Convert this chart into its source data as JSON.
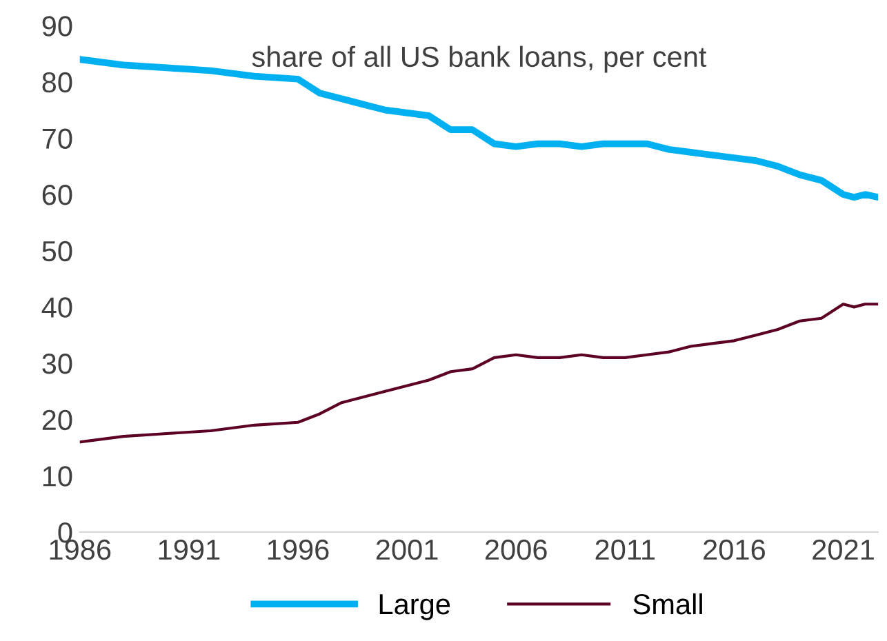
{
  "chart_data": {
    "type": "line",
    "title": "share of all US bank loans, per cent",
    "x": [
      1986,
      1988,
      1990,
      1992,
      1994,
      1996,
      1997,
      1998,
      2000,
      2002,
      2003,
      2004,
      2005,
      2006,
      2007,
      2008,
      2009,
      2010,
      2011,
      2012,
      2013,
      2014,
      2015,
      2016,
      2017,
      2018,
      2019,
      2020,
      2021,
      2021.5,
      2022,
      2022.6
    ],
    "series": [
      {
        "name": "Large",
        "color": "#00b0f0",
        "values": [
          84,
          83,
          82.5,
          82,
          81,
          80.5,
          78,
          77,
          75,
          74,
          71.5,
          71.5,
          69,
          68.5,
          69,
          69,
          68.5,
          69,
          69,
          69,
          68,
          67.5,
          67,
          66.5,
          66,
          65,
          63.5,
          62.5,
          60,
          59.5,
          60,
          59.5
        ]
      },
      {
        "name": "Small",
        "color": "#5c0024",
        "values": [
          16,
          17,
          17.5,
          18,
          19,
          19.5,
          21,
          23,
          25,
          27,
          28.5,
          29,
          31,
          31.5,
          31,
          31,
          31.5,
          31,
          31,
          31.5,
          32,
          33,
          33.5,
          34,
          35,
          36,
          37.5,
          38,
          40.5,
          40,
          40.5,
          40.5
        ]
      }
    ],
    "xlim": [
      1986,
      2022.6
    ],
    "xticks": [
      1986,
      1991,
      1996,
      2001,
      2006,
      2011,
      2016,
      2021
    ],
    "ylim": [
      0,
      90
    ],
    "yticks": [
      0,
      10,
      20,
      30,
      40,
      50,
      60,
      70,
      80,
      90
    ],
    "grid": false,
    "legend": "bottom",
    "marker": "none",
    "line_style": "solid"
  }
}
